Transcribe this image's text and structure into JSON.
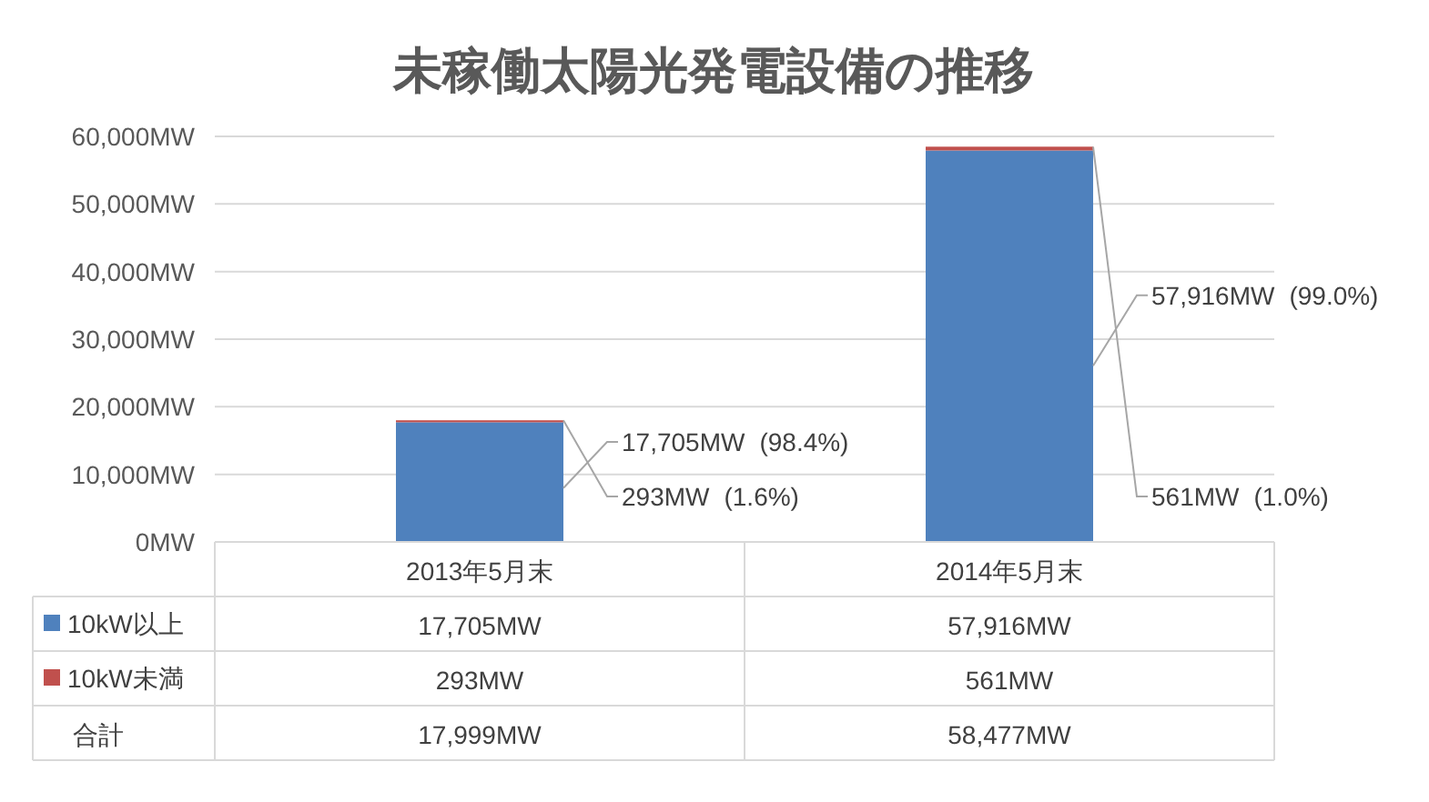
{
  "chart_data": {
    "type": "bar",
    "title": "未稼働太陽光発電設備の推移",
    "stacked": true,
    "categories": [
      "2013年5月末",
      "2014年5月末"
    ],
    "series": [
      {
        "name": "10kW以上",
        "color": "#4f81bd",
        "values": [
          17705,
          57916
        ],
        "value_labels": [
          "17,705MW",
          "57,916MW"
        ]
      },
      {
        "name": "10kW未満",
        "color": "#c0504d",
        "values": [
          293,
          561
        ],
        "value_labels": [
          "293MW",
          "561MW"
        ]
      }
    ],
    "annotations": [
      "合計",
      "(98.4%)",
      "(99.0%)",
      "(1.6%)",
      "(1.0%)",
      "17,999MW",
      "58,477MW"
    ],
    "ylim": [
      0,
      60000
    ],
    "yticks": [
      {
        "value": 0,
        "label": "0MW"
      },
      {
        "value": 10000,
        "label": "10,000MW"
      },
      {
        "value": 20000,
        "label": "20,000MW"
      },
      {
        "value": 30000,
        "label": "30,000MW"
      },
      {
        "value": 40000,
        "label": "40,000MW"
      },
      {
        "value": 50000,
        "label": "50,000MW"
      },
      {
        "value": 60000,
        "label": "60,000MW"
      }
    ],
    "grid": "y",
    "legend": "bottom"
  }
}
